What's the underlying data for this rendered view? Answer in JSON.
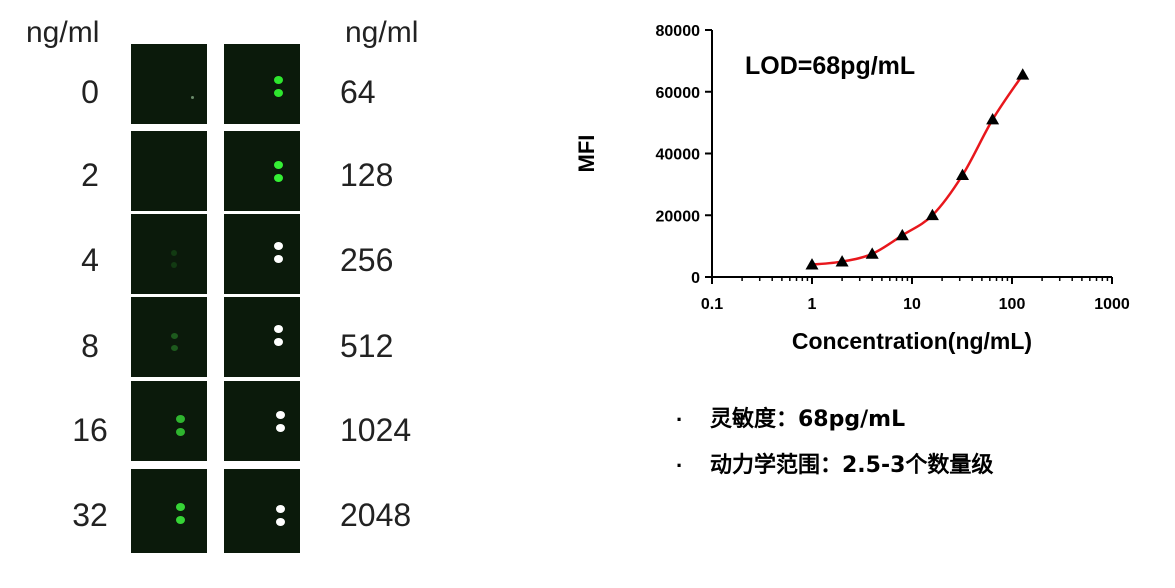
{
  "left_panel": {
    "unit_left": "ng/ml",
    "unit_right": "ng/ml",
    "left_concentrations": [
      "0",
      "2",
      "4",
      "8",
      "16",
      "32"
    ],
    "right_concentrations": [
      "64",
      "128",
      "256",
      "512",
      "1024",
      "2048"
    ]
  },
  "chart_data": {
    "type": "scatter",
    "title": "",
    "annotation": "LOD=68pg/mL",
    "xlabel": "Concentration(ng/mL)",
    "ylabel": "MFI",
    "x_scale": "log",
    "xlim": [
      0.1,
      1000
    ],
    "ylim": [
      0,
      80000
    ],
    "x_ticks": [
      "0.1",
      "1",
      "10",
      "100",
      "1000"
    ],
    "y_ticks": [
      "0",
      "20000",
      "40000",
      "60000",
      "80000"
    ],
    "series": [
      {
        "marker": "triangle",
        "x": [
          1,
          2,
          4,
          8,
          16,
          32,
          64,
          128
        ],
        "y": [
          4000,
          5000,
          7500,
          13500,
          20000,
          33000,
          51000,
          65500
        ]
      }
    ],
    "fit_curve_color": "#e8171c",
    "grid": false
  },
  "bullets": [
    "灵敏度：68pg/mL",
    "动力学范围：2.5-3个数量级"
  ],
  "bullet_symbol": "·",
  "colors": {
    "well_bg": "#0b1a0b",
    "spot_green": "#2ee62e",
    "spot_white": "#ffffff",
    "curve": "#e8171c"
  }
}
